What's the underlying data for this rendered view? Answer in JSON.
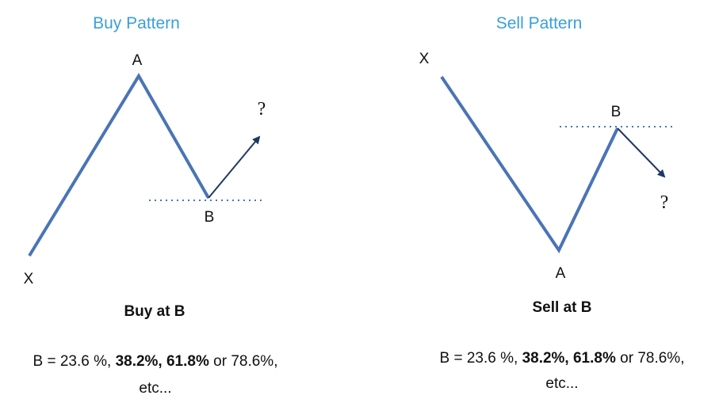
{
  "panels": [
    {
      "title": "Buy Pattern",
      "labels": {
        "x": "X",
        "a": "A",
        "b": "B",
        "question": "?"
      },
      "action": "Buy at B",
      "description": [
        [
          {
            "text": "B = 23.6 %, ",
            "bold": false
          },
          {
            "text": "38.2%, 61.8%",
            "bold": true
          },
          {
            "text": " or 78.6%,",
            "bold": false
          }
        ],
        [
          {
            "text": "etc...",
            "bold": false
          }
        ]
      ]
    },
    {
      "title": "Sell Pattern",
      "labels": {
        "x": "X",
        "a": "A",
        "b": "B",
        "question": "?"
      },
      "action": "Sell at B",
      "description": [
        [
          {
            "text": "B = 23.6 %, ",
            "bold": false
          },
          {
            "text": "38.2%, 61.8%",
            "bold": true
          },
          {
            "text": " or 78.6%,",
            "bold": false
          }
        ],
        [
          {
            "text": "etc...",
            "bold": false
          }
        ]
      ]
    }
  ]
}
